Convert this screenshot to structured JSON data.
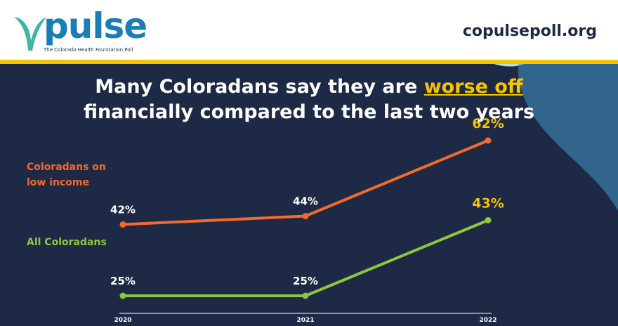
{
  "header": {
    "logo": "pulse",
    "tagline": "The Colorado Health Foundation Poll",
    "website": "copulsepoll.org"
  },
  "chart_data": {
    "type": "line",
    "title": {
      "before": "Many Coloradans say they are ",
      "highlight": "worse off",
      "after": " financially compared to the last two years"
    },
    "categories": [
      "2020",
      "2021",
      "2022"
    ],
    "series": [
      {
        "name": "Coloradans on low income",
        "color": "#f26a2e",
        "values": [
          42,
          44,
          62
        ],
        "value_labels": [
          "42%",
          "44%",
          "62%"
        ]
      },
      {
        "name": "All Coloradans",
        "color": "#8dc63f",
        "values": [
          25,
          25,
          43
        ],
        "value_labels": [
          "25%",
          "25%",
          "43%"
        ]
      }
    ]
  }
}
